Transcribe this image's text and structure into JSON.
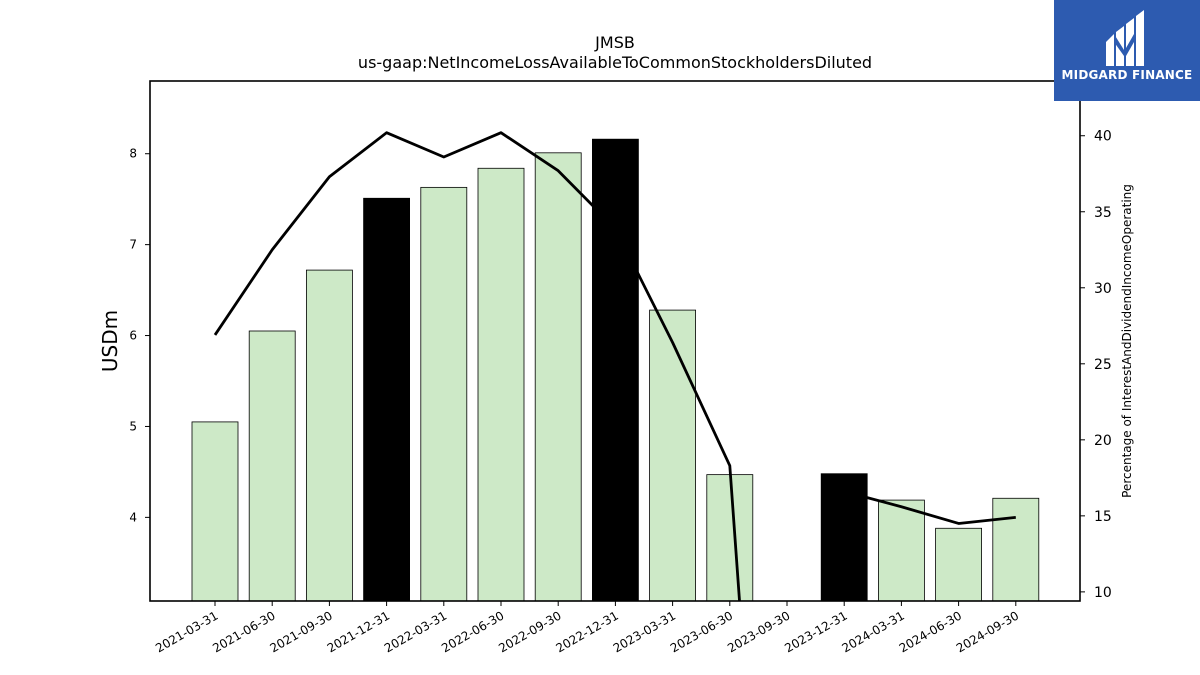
{
  "chart_data": {
    "type": "bar",
    "title": "JMSB",
    "subtitle": "us-gaap:NetIncomeLossAvailableToCommonStockholdersDiluted",
    "ylabel": "USDm",
    "y2label": "Percentage of InterestAndDividendIncomeOperating",
    "categories": [
      "2021-03-31",
      "2021-06-30",
      "2021-09-30",
      "2021-12-31",
      "2022-03-31",
      "2022-06-30",
      "2022-09-30",
      "2022-12-31",
      "2023-03-31",
      "2023-06-30",
      "2023-09-30",
      "2023-12-31",
      "2024-03-31",
      "2024-06-30",
      "2024-09-30"
    ],
    "series": [
      {
        "type": "bar",
        "values": [
          5.05,
          6.05,
          6.72,
          7.51,
          7.63,
          7.84,
          8.01,
          8.16,
          6.28,
          4.47,
          null,
          4.48,
          4.19,
          3.88,
          4.21
        ],
        "highlight": [
          false,
          false,
          false,
          true,
          false,
          false,
          false,
          true,
          false,
          false,
          false,
          true,
          false,
          false,
          false
        ]
      },
      {
        "type": "line",
        "axis": "right",
        "values": [
          26.9,
          32.5,
          37.3,
          40.2,
          38.6,
          40.2,
          37.7,
          33.9,
          26.4,
          18.3,
          null,
          16.6,
          15.6,
          14.5,
          14.9
        ],
        "drop_to_axis_after_index": 9
      }
    ],
    "ylim": [
      3.08,
      8.8
    ],
    "yticks": [
      4,
      5,
      6,
      7,
      8
    ],
    "y2lim": [
      9.4,
      43.6
    ],
    "y2ticks": [
      10,
      15,
      20,
      25,
      30,
      35,
      40
    ],
    "grid": false,
    "colors": {
      "bar": "#cde9c7",
      "bar_highlight": "#000000",
      "line": "#000000",
      "logo_bg": "#2d5bb0"
    }
  },
  "logo": {
    "text": "MIDGARD FINANCE",
    "icon": "midgard-logo-icon"
  }
}
